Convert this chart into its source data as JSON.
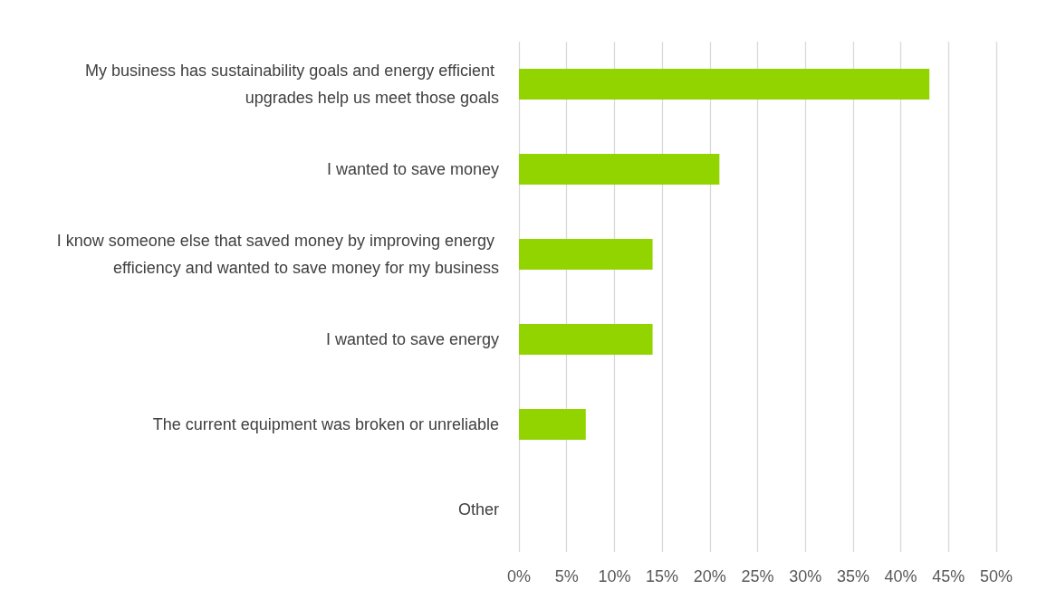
{
  "chart_data": {
    "type": "bar",
    "orientation": "horizontal",
    "categories": [
      "My business has sustainability goals and energy efficient upgrades help us meet those goals",
      "I wanted to save money",
      "I know someone else that saved money by improving energy efficiency and wanted to save money for my business",
      "I wanted to save energy",
      "The current equipment was broken or unreliable",
      "Other"
    ],
    "values": [
      43,
      21,
      14,
      14,
      7,
      0
    ],
    "color": "#92d400",
    "xlim": [
      0,
      50
    ],
    "xticks": [
      {
        "value": 0,
        "label": "0%"
      },
      {
        "value": 5,
        "label": "5%"
      },
      {
        "value": 10,
        "label": "10%"
      },
      {
        "value": 15,
        "label": "15%"
      },
      {
        "value": 20,
        "label": "20%"
      },
      {
        "value": 25,
        "label": "25%"
      },
      {
        "value": 30,
        "label": "30%"
      },
      {
        "value": 35,
        "label": "35%"
      },
      {
        "value": 40,
        "label": "40%"
      },
      {
        "value": 45,
        "label": "45%"
      },
      {
        "value": 50,
        "label": "50%"
      }
    ],
    "grid": "x"
  }
}
